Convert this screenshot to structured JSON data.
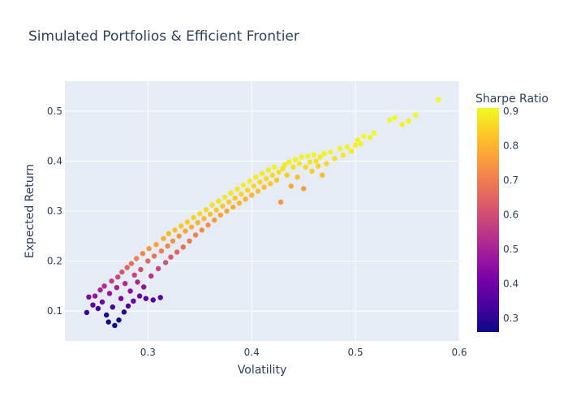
{
  "chart_data": {
    "type": "scatter",
    "title": "Simulated Portfolios & Efficient Frontier",
    "xlabel": "Volatility",
    "ylabel": "Expected Return",
    "xlim": [
      0.22,
      0.6
    ],
    "ylim": [
      0.04,
      0.56
    ],
    "x_ticks": [
      0.3,
      0.4,
      0.5,
      0.6
    ],
    "x_tick_labels": [
      "0.3",
      "0.4",
      "0.5",
      "0.6"
    ],
    "y_ticks": [
      0.1,
      0.2,
      0.3,
      0.4,
      0.5
    ],
    "y_tick_labels": [
      "0.1",
      "0.2",
      "0.3",
      "0.4",
      "0.5"
    ],
    "grid": true,
    "colorbar": {
      "title": "Sharpe Ratio",
      "min": 0.26,
      "max": 0.91,
      "ticks": [
        0.3,
        0.4,
        0.5,
        0.6,
        0.7,
        0.8,
        0.9
      ],
      "tick_labels": [
        "0.3",
        "0.4",
        "0.5",
        "0.6",
        "0.7",
        "0.8",
        "0.9"
      ],
      "colorscale": [
        "#0d0887",
        "#46039f",
        "#7201a8",
        "#9c179e",
        "#bd3786",
        "#d8576b",
        "#ed7953",
        "#fb9f3a",
        "#fdca26",
        "#f0f921"
      ]
    },
    "plot_background": "#e5ecf6",
    "points": [
      [
        0.241,
        0.097,
        0.32
      ],
      [
        0.243,
        0.128,
        0.43
      ],
      [
        0.247,
        0.112,
        0.37
      ],
      [
        0.249,
        0.13,
        0.46
      ],
      [
        0.252,
        0.105,
        0.33
      ],
      [
        0.254,
        0.142,
        0.5
      ],
      [
        0.256,
        0.118,
        0.39
      ],
      [
        0.258,
        0.15,
        0.53
      ],
      [
        0.26,
        0.092,
        0.28
      ],
      [
        0.262,
        0.078,
        0.27
      ],
      [
        0.263,
        0.135,
        0.46
      ],
      [
        0.265,
        0.16,
        0.56
      ],
      [
        0.266,
        0.108,
        0.33
      ],
      [
        0.268,
        0.071,
        0.26
      ],
      [
        0.27,
        0.147,
        0.5
      ],
      [
        0.271,
        0.168,
        0.59
      ],
      [
        0.272,
        0.082,
        0.27
      ],
      [
        0.274,
        0.125,
        0.41
      ],
      [
        0.275,
        0.178,
        0.62
      ],
      [
        0.277,
        0.098,
        0.3
      ],
      [
        0.278,
        0.155,
        0.52
      ],
      [
        0.28,
        0.187,
        0.65
      ],
      [
        0.281,
        0.11,
        0.34
      ],
      [
        0.283,
        0.14,
        0.45
      ],
      [
        0.284,
        0.195,
        0.67
      ],
      [
        0.286,
        0.12,
        0.37
      ],
      [
        0.287,
        0.172,
        0.58
      ],
      [
        0.289,
        0.205,
        0.7
      ],
      [
        0.29,
        0.158,
        0.51
      ],
      [
        0.292,
        0.13,
        0.39
      ],
      [
        0.293,
        0.183,
        0.61
      ],
      [
        0.295,
        0.215,
        0.72
      ],
      [
        0.296,
        0.148,
        0.46
      ],
      [
        0.298,
        0.125,
        0.37
      ],
      [
        0.3,
        0.2,
        0.66
      ],
      [
        0.301,
        0.225,
        0.75
      ],
      [
        0.303,
        0.17,
        0.54
      ],
      [
        0.305,
        0.122,
        0.35
      ],
      [
        0.306,
        0.21,
        0.68
      ],
      [
        0.308,
        0.233,
        0.77
      ],
      [
        0.31,
        0.185,
        0.58
      ],
      [
        0.312,
        0.127,
        0.36
      ],
      [
        0.313,
        0.22,
        0.7
      ],
      [
        0.315,
        0.245,
        0.79
      ],
      [
        0.317,
        0.197,
        0.61
      ],
      [
        0.319,
        0.23,
        0.72
      ],
      [
        0.32,
        0.255,
        0.81
      ],
      [
        0.322,
        0.208,
        0.63
      ],
      [
        0.324,
        0.24,
        0.74
      ],
      [
        0.326,
        0.262,
        0.82
      ],
      [
        0.328,
        0.218,
        0.65
      ],
      [
        0.33,
        0.25,
        0.76
      ],
      [
        0.332,
        0.27,
        0.83
      ],
      [
        0.334,
        0.228,
        0.67
      ],
      [
        0.336,
        0.26,
        0.78
      ],
      [
        0.338,
        0.278,
        0.84
      ],
      [
        0.34,
        0.24,
        0.69
      ],
      [
        0.342,
        0.268,
        0.79
      ],
      [
        0.344,
        0.287,
        0.85
      ],
      [
        0.346,
        0.252,
        0.71
      ],
      [
        0.348,
        0.277,
        0.8
      ],
      [
        0.35,
        0.295,
        0.86
      ],
      [
        0.352,
        0.262,
        0.73
      ],
      [
        0.354,
        0.285,
        0.81
      ],
      [
        0.356,
        0.303,
        0.86
      ],
      [
        0.358,
        0.272,
        0.74
      ],
      [
        0.36,
        0.294,
        0.82
      ],
      [
        0.362,
        0.312,
        0.87
      ],
      [
        0.364,
        0.282,
        0.76
      ],
      [
        0.366,
        0.302,
        0.83
      ],
      [
        0.368,
        0.32,
        0.87
      ],
      [
        0.37,
        0.292,
        0.77
      ],
      [
        0.372,
        0.31,
        0.83
      ],
      [
        0.374,
        0.328,
        0.88
      ],
      [
        0.376,
        0.3,
        0.78
      ],
      [
        0.378,
        0.318,
        0.84
      ],
      [
        0.38,
        0.336,
        0.88
      ],
      [
        0.382,
        0.308,
        0.79
      ],
      [
        0.384,
        0.326,
        0.84
      ],
      [
        0.386,
        0.344,
        0.88
      ],
      [
        0.388,
        0.316,
        0.8
      ],
      [
        0.39,
        0.334,
        0.85
      ],
      [
        0.392,
        0.352,
        0.89
      ],
      [
        0.394,
        0.324,
        0.8
      ],
      [
        0.396,
        0.342,
        0.85
      ],
      [
        0.398,
        0.36,
        0.89
      ],
      [
        0.4,
        0.332,
        0.81
      ],
      [
        0.402,
        0.35,
        0.85
      ],
      [
        0.404,
        0.368,
        0.89
      ],
      [
        0.406,
        0.34,
        0.82
      ],
      [
        0.408,
        0.358,
        0.86
      ],
      [
        0.41,
        0.375,
        0.89
      ],
      [
        0.412,
        0.348,
        0.82
      ],
      [
        0.414,
        0.365,
        0.86
      ],
      [
        0.416,
        0.382,
        0.89
      ],
      [
        0.418,
        0.355,
        0.83
      ],
      [
        0.42,
        0.372,
        0.86
      ],
      [
        0.422,
        0.388,
        0.9
      ],
      [
        0.424,
        0.362,
        0.83
      ],
      [
        0.426,
        0.378,
        0.87
      ],
      [
        0.428,
        0.318,
        0.74
      ],
      [
        0.43,
        0.385,
        0.87
      ],
      [
        0.432,
        0.393,
        0.89
      ],
      [
        0.434,
        0.372,
        0.84
      ],
      [
        0.436,
        0.398,
        0.9
      ],
      [
        0.438,
        0.35,
        0.78
      ],
      [
        0.44,
        0.388,
        0.87
      ],
      [
        0.442,
        0.403,
        0.9
      ],
      [
        0.444,
        0.368,
        0.82
      ],
      [
        0.446,
        0.395,
        0.88
      ],
      [
        0.448,
        0.408,
        0.9
      ],
      [
        0.45,
        0.345,
        0.76
      ],
      [
        0.452,
        0.388,
        0.86
      ],
      [
        0.454,
        0.41,
        0.9
      ],
      [
        0.456,
        0.398,
        0.88
      ],
      [
        0.458,
        0.38,
        0.84
      ],
      [
        0.46,
        0.413,
        0.9
      ],
      [
        0.462,
        0.4,
        0.87
      ],
      [
        0.464,
        0.39,
        0.85
      ],
      [
        0.466,
        0.408,
        0.89
      ],
      [
        0.468,
        0.372,
        0.81
      ],
      [
        0.47,
        0.415,
        0.9
      ],
      [
        0.472,
        0.395,
        0.86
      ],
      [
        0.476,
        0.418,
        0.9
      ],
      [
        0.48,
        0.405,
        0.87
      ],
      [
        0.485,
        0.425,
        0.9
      ],
      [
        0.488,
        0.412,
        0.88
      ],
      [
        0.492,
        0.428,
        0.9
      ],
      [
        0.496,
        0.42,
        0.89
      ],
      [
        0.5,
        0.432,
        0.9
      ],
      [
        0.502,
        0.442,
        0.9
      ],
      [
        0.505,
        0.435,
        0.9
      ],
      [
        0.508,
        0.45,
        0.91
      ],
      [
        0.514,
        0.447,
        0.9
      ],
      [
        0.518,
        0.456,
        0.91
      ],
      [
        0.533,
        0.482,
        0.91
      ],
      [
        0.538,
        0.487,
        0.91
      ],
      [
        0.545,
        0.473,
        0.9
      ],
      [
        0.551,
        0.48,
        0.9
      ],
      [
        0.558,
        0.492,
        0.91
      ],
      [
        0.58,
        0.523,
        0.91
      ]
    ]
  }
}
